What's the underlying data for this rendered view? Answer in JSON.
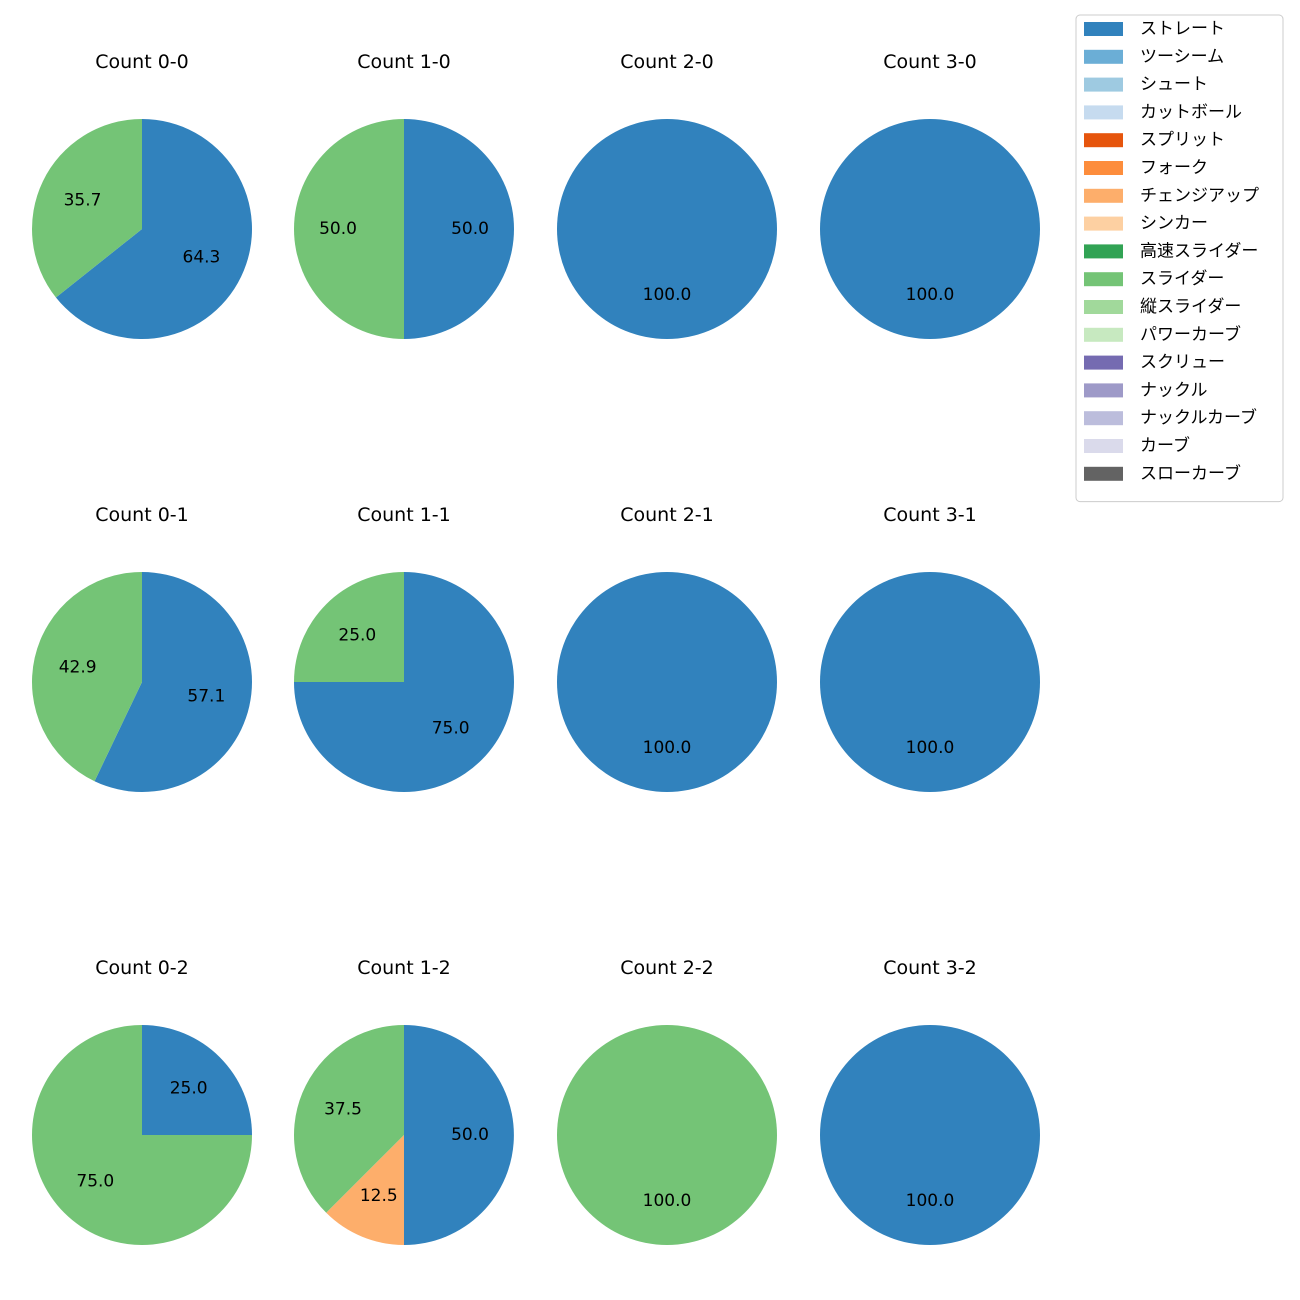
{
  "chart_data": {
    "type": "pie",
    "legend": {
      "placement": "top-right",
      "entries": [
        {
          "name": "ストレート",
          "color": "#3182bd"
        },
        {
          "name": "ツーシーム",
          "color": "#6baed6"
        },
        {
          "name": "シュート",
          "color": "#9ecae1"
        },
        {
          "name": "カットボール",
          "color": "#c6dbef"
        },
        {
          "name": "スプリット",
          "color": "#e6550d"
        },
        {
          "name": "フォーク",
          "color": "#fd8d3c"
        },
        {
          "name": "チェンジアップ",
          "color": "#fdae6b"
        },
        {
          "name": "シンカー",
          "color": "#fdd0a2"
        },
        {
          "name": "高速スライダー",
          "color": "#31a354"
        },
        {
          "name": "スライダー",
          "color": "#74c476"
        },
        {
          "name": "縦スライダー",
          "color": "#a1d99b"
        },
        {
          "name": "パワーカーブ",
          "color": "#c7e9c0"
        },
        {
          "name": "スクリュー",
          "color": "#756bb1"
        },
        {
          "name": "ナックル",
          "color": "#9e9ac8"
        },
        {
          "name": "ナックルカーブ",
          "color": "#bcbddc"
        },
        {
          "name": "カーブ",
          "color": "#dadaeb"
        },
        {
          "name": "スローカーブ",
          "color": "#636363"
        }
      ]
    },
    "pies": [
      {
        "title": "Count 0-0",
        "slices": [
          {
            "pitch": "ストレート",
            "value": 64.3,
            "label": "64.3"
          },
          {
            "pitch": "スライダー",
            "value": 35.7,
            "label": "35.7"
          }
        ]
      },
      {
        "title": "Count 1-0",
        "slices": [
          {
            "pitch": "ストレート",
            "value": 50.0,
            "label": "50.0"
          },
          {
            "pitch": "スライダー",
            "value": 50.0,
            "label": "50.0"
          }
        ]
      },
      {
        "title": "Count 2-0",
        "slices": [
          {
            "pitch": "ストレート",
            "value": 100.0,
            "label": "100.0"
          }
        ]
      },
      {
        "title": "Count 3-0",
        "slices": [
          {
            "pitch": "ストレート",
            "value": 100.0,
            "label": "100.0"
          }
        ]
      },
      {
        "title": "Count 0-1",
        "slices": [
          {
            "pitch": "ストレート",
            "value": 57.1,
            "label": "57.1"
          },
          {
            "pitch": "スライダー",
            "value": 42.9,
            "label": "42.9"
          }
        ]
      },
      {
        "title": "Count 1-1",
        "slices": [
          {
            "pitch": "ストレート",
            "value": 75.0,
            "label": "75.0"
          },
          {
            "pitch": "スライダー",
            "value": 25.0,
            "label": "25.0"
          }
        ]
      },
      {
        "title": "Count 2-1",
        "slices": [
          {
            "pitch": "ストレート",
            "value": 100.0,
            "label": "100.0"
          }
        ]
      },
      {
        "title": "Count 3-1",
        "slices": [
          {
            "pitch": "ストレート",
            "value": 100.0,
            "label": "100.0"
          }
        ]
      },
      {
        "title": "Count 0-2",
        "slices": [
          {
            "pitch": "ストレート",
            "value": 25.0,
            "label": "25.0"
          },
          {
            "pitch": "スライダー",
            "value": 75.0,
            "label": "75.0"
          }
        ]
      },
      {
        "title": "Count 1-2",
        "slices": [
          {
            "pitch": "ストレート",
            "value": 50.0,
            "label": "50.0"
          },
          {
            "pitch": "チェンジアップ",
            "value": 12.5,
            "label": "12.5"
          },
          {
            "pitch": "スライダー",
            "value": 37.5,
            "label": "37.5"
          }
        ]
      },
      {
        "title": "Count 2-2",
        "slices": [
          {
            "pitch": "スライダー",
            "value": 100.0,
            "label": "100.0"
          }
        ]
      },
      {
        "title": "Count 3-2",
        "slices": [
          {
            "pitch": "ストレート",
            "value": 100.0,
            "label": "100.0"
          }
        ]
      }
    ]
  }
}
